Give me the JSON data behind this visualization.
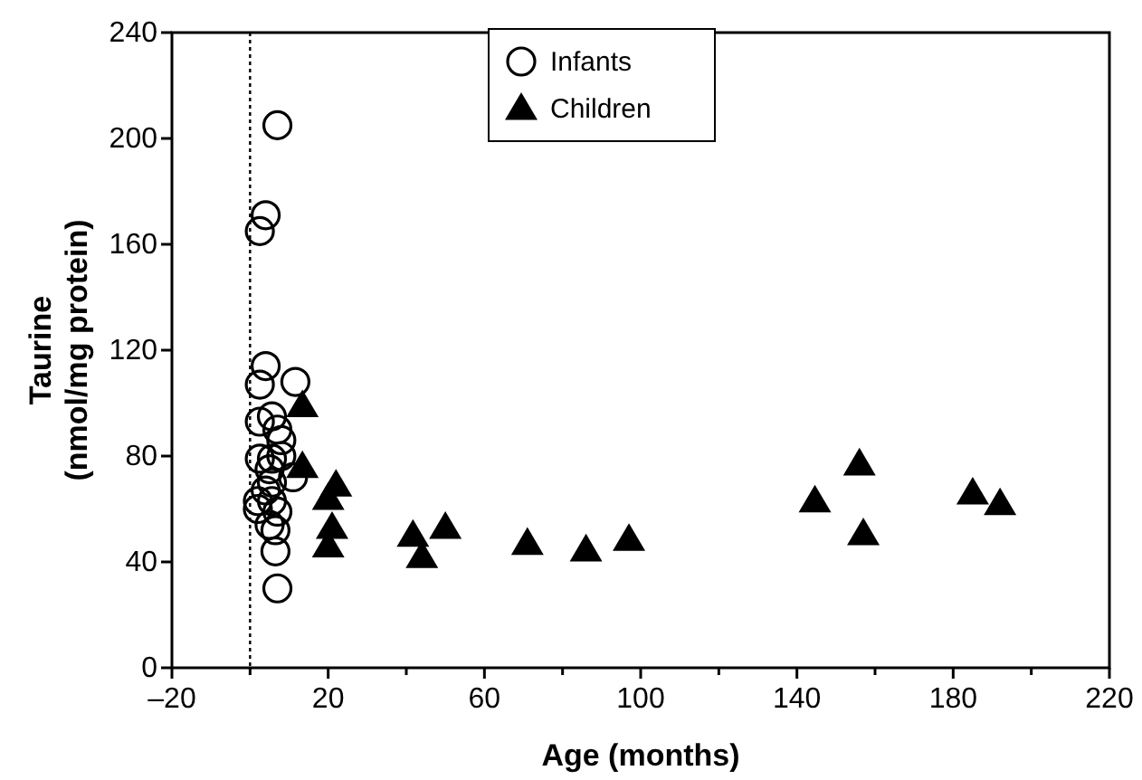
{
  "chart_data": {
    "type": "scatter",
    "xlabel": "Age (months)",
    "ylabel": "Taurine\n(nmol/mg protein)",
    "xlim": [
      -20,
      220
    ],
    "ylim": [
      0,
      240
    ],
    "xticks": [
      {
        "value": -20,
        "label": "–20"
      },
      {
        "value": 0,
        "label": null
      },
      20,
      {
        "value": 40,
        "label": null
      },
      60,
      {
        "value": 80,
        "label": null
      },
      100,
      {
        "value": 120,
        "label": null
      },
      140,
      {
        "value": 160,
        "label": null
      },
      180,
      {
        "value": 200,
        "label": null
      },
      220
    ],
    "yticks": [
      0,
      40,
      80,
      120,
      160,
      200,
      240
    ],
    "grid": false,
    "legend": "top",
    "ref_lines": [
      {
        "axis": "x",
        "value": 0,
        "line_style": "dotted",
        "color": "#000000"
      }
    ],
    "series": [
      {
        "name": "Infants",
        "color": "#000000",
        "marker": "circle",
        "x": [
          7,
          4,
          2.5,
          4,
          2.5,
          11.6,
          5.6,
          7,
          2.5,
          8,
          2.5,
          5.6,
          11,
          5.6,
          2,
          5.6,
          7,
          5,
          6.5,
          6.5,
          7,
          2,
          4,
          5,
          8
        ],
        "values": [
          205,
          171,
          165,
          114,
          107,
          108,
          95,
          90,
          93,
          86,
          79,
          79,
          72,
          70,
          63,
          63,
          59,
          54,
          52,
          44,
          30,
          60,
          67,
          75,
          80
        ]
      },
      {
        "name": "Children",
        "color": "#000000",
        "marker": "triangle",
        "x": [
          13.4,
          13.4,
          22,
          20,
          21,
          20,
          41.7,
          50,
          44,
          71,
          86,
          97,
          144.6,
          156,
          157,
          185,
          192
        ],
        "values": [
          99,
          76,
          69,
          64,
          53,
          46,
          50,
          53,
          42,
          47,
          44.5,
          48.5,
          63,
          77,
          50.6,
          66,
          62
        ]
      }
    ]
  }
}
